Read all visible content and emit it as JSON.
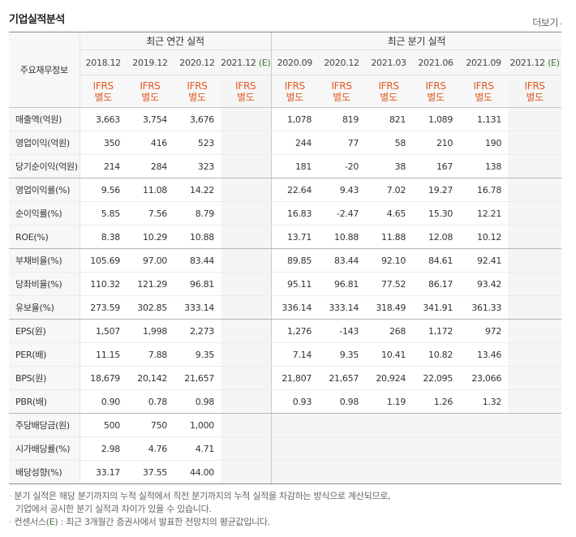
{
  "section_title": "기업실적분석",
  "more_link": "더보기",
  "more_arrow": "›",
  "header": {
    "label_head": "주요재무정보",
    "annual_group": "최근 연간 실적",
    "quarter_group": "최근 분기 실적",
    "annual_periods": [
      "2018.12",
      "2019.12",
      "2020.12",
      "2021.12"
    ],
    "annual_est_mark": "(E)",
    "quarter_periods": [
      "2020.09",
      "2020.12",
      "2021.03",
      "2021.06",
      "2021.09",
      "2021.12"
    ],
    "quarter_est_mark": "(E)",
    "ifrs_top": "IFRS",
    "ifrs_bottom": "별도"
  },
  "rows": [
    {
      "label": "매출액(억원)",
      "annual": [
        "3,663",
        "3,754",
        "3,676",
        ""
      ],
      "quarter": [
        "1,078",
        "819",
        "821",
        "1,089",
        "1,131",
        ""
      ]
    },
    {
      "label": "영업이익(억원)",
      "annual": [
        "350",
        "416",
        "523",
        ""
      ],
      "quarter": [
        "244",
        "77",
        "58",
        "210",
        "190",
        ""
      ]
    },
    {
      "label": "당기순이익(억원)",
      "annual": [
        "214",
        "284",
        "323",
        ""
      ],
      "quarter": [
        "181",
        "-20",
        "38",
        "167",
        "138",
        ""
      ]
    },
    {
      "label": "영업이익률(%)",
      "annual": [
        "9.56",
        "11.08",
        "14.22",
        ""
      ],
      "quarter": [
        "22.64",
        "9.43",
        "7.02",
        "19.27",
        "16.78",
        ""
      ]
    },
    {
      "label": "순이익률(%)",
      "annual": [
        "5.85",
        "7.56",
        "8.79",
        ""
      ],
      "quarter": [
        "16.83",
        "-2.47",
        "4.65",
        "15.30",
        "12.21",
        ""
      ]
    },
    {
      "label": "ROE(%)",
      "annual": [
        "8.38",
        "10.29",
        "10.88",
        ""
      ],
      "quarter": [
        "13.71",
        "10.88",
        "11.88",
        "12.08",
        "10.12",
        ""
      ]
    },
    {
      "label": "부채비율(%)",
      "annual": [
        "105.69",
        "97.00",
        "83.44",
        ""
      ],
      "quarter": [
        "89.85",
        "83.44",
        "92.10",
        "84.61",
        "92.41",
        ""
      ]
    },
    {
      "label": "당좌비율(%)",
      "annual": [
        "110.32",
        "121.29",
        "96.81",
        ""
      ],
      "quarter": [
        "95.11",
        "96.81",
        "77.52",
        "86.17",
        "93.42",
        ""
      ]
    },
    {
      "label": "유보율(%)",
      "annual": [
        "273.59",
        "302.85",
        "333.14",
        ""
      ],
      "quarter": [
        "336.14",
        "333.14",
        "318.49",
        "341.91",
        "361.33",
        ""
      ]
    },
    {
      "label": "EPS(원)",
      "annual": [
        "1,507",
        "1,998",
        "2,273",
        ""
      ],
      "quarter": [
        "1,276",
        "-143",
        "268",
        "1,172",
        "972",
        ""
      ]
    },
    {
      "label": "PER(배)",
      "annual": [
        "11.15",
        "7.88",
        "9.35",
        ""
      ],
      "quarter": [
        "7.14",
        "9.35",
        "10.41",
        "10.82",
        "13.46",
        ""
      ]
    },
    {
      "label": "BPS(원)",
      "annual": [
        "18,679",
        "20,142",
        "21,657",
        ""
      ],
      "quarter": [
        "21,807",
        "21,657",
        "20,924",
        "22,095",
        "23,066",
        ""
      ]
    },
    {
      "label": "PBR(배)",
      "annual": [
        "0.90",
        "0.78",
        "0.98",
        ""
      ],
      "quarter": [
        "0.93",
        "0.98",
        "1.19",
        "1.26",
        "1.32",
        ""
      ]
    },
    {
      "label": "주당배당금(원)",
      "annual": [
        "500",
        "750",
        "1,000",
        ""
      ],
      "quarter": [
        "",
        "",
        "",
        "",
        "",
        ""
      ]
    },
    {
      "label": "시가배당률(%)",
      "annual": [
        "2.98",
        "4.76",
        "4.71",
        ""
      ],
      "quarter": [
        "",
        "",
        "",
        "",
        "",
        ""
      ]
    },
    {
      "label": "배당성향(%)",
      "annual": [
        "33.17",
        "37.55",
        "44.00",
        ""
      ],
      "quarter": [
        "",
        "",
        "",
        "",
        "",
        ""
      ]
    }
  ],
  "notes": {
    "bullet": "·",
    "line1": "분기 실적은 해당 분기까지의 누적 실적에서 직전 분기까지의 누적 실적을 차감하는 방식으로 계산되므로,",
    "line2": "기업에서 공시한 분기 실적과 차이가 있을 수 있습니다.",
    "line3_pre": "컨센서스(",
    "line3_e": "E",
    "line3_post": ") : 최근 3개월간 증권사에서 발표한 전망치의 평균값입니다."
  },
  "colors": {
    "negative": "#e60000",
    "ifrs": "#e15b23",
    "estimate": "#3f7b3b"
  }
}
